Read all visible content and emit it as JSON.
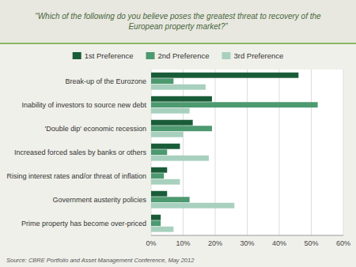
{
  "chart_data": {
    "type": "bar",
    "orientation": "horizontal",
    "title": "“Which of the following do you believe poses the greatest threat to recovery of the\nEuropean property market?”",
    "annotations": [
      "Source: CBRE  Portfolio and Asset Management Conference,  May 2012"
    ],
    "categories": [
      "Break-up of the Eurozone",
      "Inability of investors to source new debt",
      "'Double dip' economic recession",
      "Increased forced sales by banks or others",
      "Rising interest rates and/or threat of inflation",
      "Government austerity policies",
      "Prime property has become over-priced"
    ],
    "series": [
      {
        "name": "1st Preference",
        "color": "#1a5c38",
        "values": [
          46,
          19,
          13,
          9,
          5,
          5,
          3
        ]
      },
      {
        "name": "2nd Preference",
        "color": "#4d9970",
        "values": [
          7,
          52,
          19,
          5,
          4,
          12,
          3
        ]
      },
      {
        "name": "3rd Preference",
        "color": "#a8d0be",
        "values": [
          17,
          12,
          10,
          18,
          9,
          26,
          7
        ]
      }
    ],
    "xlim": [
      0,
      60
    ],
    "xticks": [
      {
        "value": 0,
        "label": "0%"
      },
      {
        "value": 10,
        "label": "10%"
      },
      {
        "value": 20,
        "label": "20%"
      },
      {
        "value": 30,
        "label": "30%"
      },
      {
        "value": 40,
        "label": "40%"
      },
      {
        "value": 50,
        "label": "50%"
      },
      {
        "value": 60,
        "label": "60%"
      }
    ],
    "grid": true,
    "legend": "top"
  }
}
